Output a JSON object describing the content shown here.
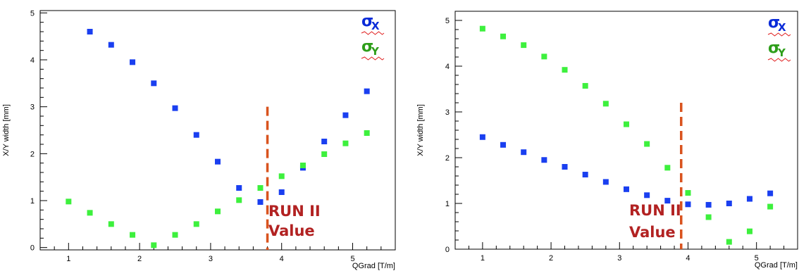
{
  "chart_data": [
    {
      "type": "scatter",
      "ylabel": "X/Y width [mm]",
      "xlabel": "QGrad [T/m]",
      "xlim": [
        0.6,
        5.6
      ],
      "ylim": [
        -0.05,
        5.05
      ],
      "x_ticks": [
        "1",
        "2",
        "3",
        "4",
        "5"
      ],
      "y_ticks": [
        "0",
        "1",
        "2",
        "3",
        "4",
        "5"
      ],
      "grid": false,
      "legend": {
        "placement": "top-right",
        "entries": [
          {
            "symbol": "σ",
            "subscript": "X",
            "color": "#0a2bd8"
          },
          {
            "symbol": "σ",
            "subscript": "Y",
            "color": "#2e9e1a"
          }
        ]
      },
      "vline": {
        "x": 3.8,
        "y_top": 3.0,
        "color": "#d9531e"
      },
      "annotation": {
        "line1": "RUN II",
        "line2": "Value",
        "color": "#b22222"
      },
      "series": [
        {
          "color": "#1a3ff0",
          "x": [
            1.3,
            1.6,
            1.9,
            2.2,
            2.5,
            2.8,
            3.1,
            3.4,
            3.7,
            4.0,
            4.3,
            4.6,
            4.9,
            5.2
          ],
          "values": [
            4.6,
            4.32,
            3.95,
            3.5,
            2.97,
            2.4,
            1.83,
            1.27,
            0.97,
            1.18,
            1.7,
            2.26,
            2.82,
            3.33
          ]
        },
        {
          "color": "#3df03d",
          "x": [
            1.0,
            1.3,
            1.6,
            1.9,
            2.2,
            2.5,
            2.8,
            3.1,
            3.4,
            3.7,
            4.0,
            4.3,
            4.6,
            4.9,
            5.2
          ],
          "values": [
            0.98,
            0.74,
            0.5,
            0.27,
            0.05,
            0.27,
            0.5,
            0.77,
            1.01,
            1.27,
            1.52,
            1.75,
            1.99,
            2.22,
            2.44
          ]
        }
      ]
    },
    {
      "type": "scatter",
      "ylabel": "X/Y width [mm]",
      "xlabel": "QGrad [T/m]",
      "xlim": [
        0.6,
        5.6
      ],
      "ylim": [
        0.0,
        5.2
      ],
      "x_ticks": [
        "1",
        "2",
        "3",
        "4",
        "5"
      ],
      "y_ticks": [
        "0",
        "1",
        "2",
        "3",
        "4",
        "5"
      ],
      "grid": false,
      "legend": {
        "placement": "top-right",
        "entries": [
          {
            "symbol": "σ",
            "subscript": "X",
            "color": "#0a2bd8"
          },
          {
            "symbol": "σ",
            "subscript": "Y",
            "color": "#2e9e1a"
          }
        ]
      },
      "vline": {
        "x": 3.9,
        "y_top": 3.2,
        "color": "#d9531e"
      },
      "annotation": {
        "line1": "RUN II",
        "line2": "Value",
        "color": "#b22222"
      },
      "series": [
        {
          "color": "#1a3ff0",
          "x": [
            1.0,
            1.3,
            1.6,
            1.9,
            2.2,
            2.5,
            2.8,
            3.1,
            3.4,
            3.7,
            4.0,
            4.3,
            4.6,
            4.9,
            5.2
          ],
          "values": [
            2.45,
            2.28,
            2.12,
            1.95,
            1.8,
            1.63,
            1.47,
            1.31,
            1.18,
            1.06,
            0.98,
            0.97,
            1.0,
            1.1,
            1.22
          ]
        },
        {
          "color": "#3df03d",
          "x": [
            1.0,
            1.3,
            1.6,
            1.9,
            2.2,
            2.5,
            2.8,
            3.1,
            3.4,
            3.7,
            4.0,
            4.3,
            4.6,
            4.9,
            5.2
          ],
          "values": [
            4.82,
            4.65,
            4.46,
            4.21,
            3.92,
            3.57,
            3.18,
            2.73,
            2.3,
            1.78,
            1.23,
            0.7,
            0.16,
            0.39,
            0.93
          ]
        }
      ]
    }
  ]
}
